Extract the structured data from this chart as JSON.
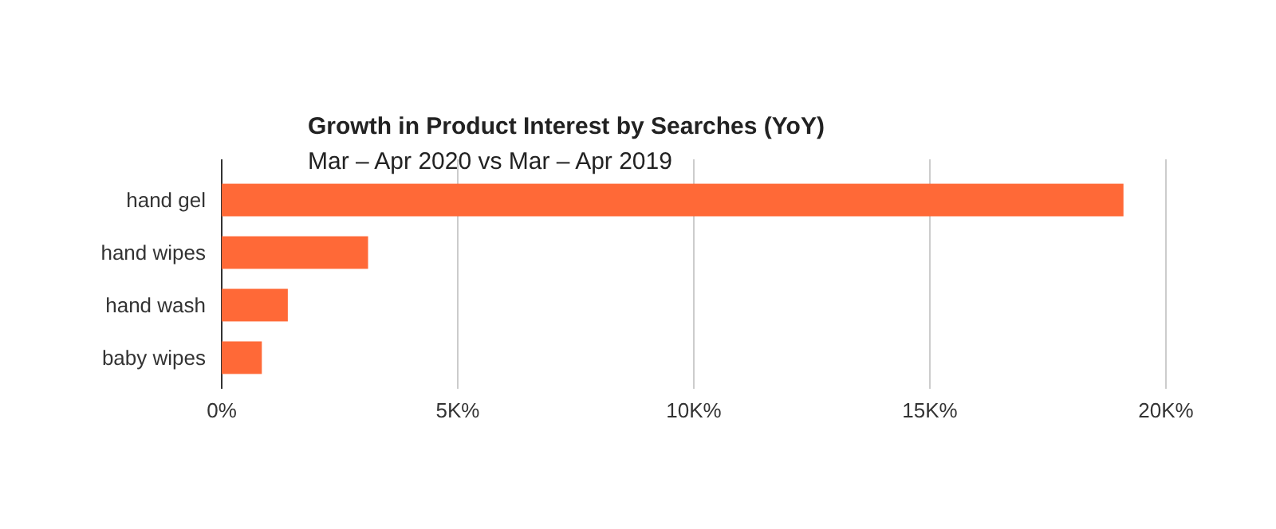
{
  "chart_data": {
    "type": "bar",
    "orientation": "horizontal",
    "title": "Growth in Product Interest by Searches (YoY)",
    "subtitle": "Mar – Apr 2020 vs Mar – Apr 2019",
    "categories": [
      "hand gel",
      "hand wipes",
      "hand wash",
      "baby wipes"
    ],
    "values": [
      19100,
      3100,
      1400,
      850
    ],
    "color": "#ff6937",
    "xlim": [
      0,
      20000
    ],
    "xticks": [
      {
        "value": 0,
        "label": "0%"
      },
      {
        "value": 5000,
        "label": "5K%"
      },
      {
        "value": 10000,
        "label": "10K%"
      },
      {
        "value": 15000,
        "label": "15K%"
      },
      {
        "value": 20000,
        "label": "20K%"
      }
    ],
    "grid": "x"
  }
}
